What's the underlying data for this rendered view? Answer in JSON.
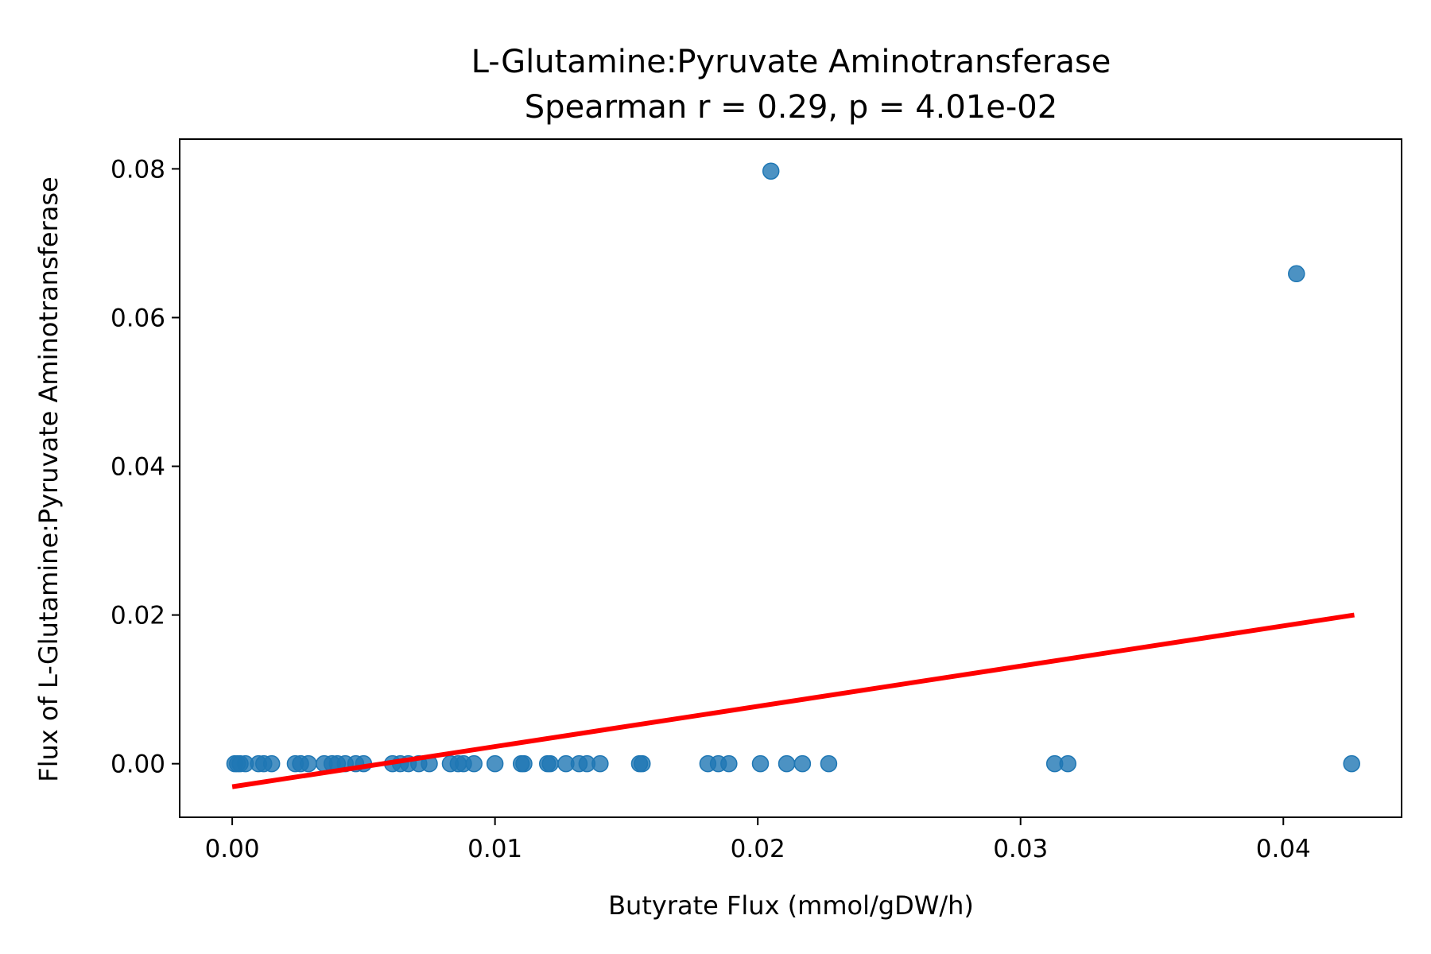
{
  "chart_data": {
    "type": "scatter",
    "title": "L-Glutamine:Pyruvate Aminotransferase",
    "subtitle": "Spearman r = 0.29, p = 4.01e-02",
    "xlabel": "Butyrate Flux (mmol/gDW/h)",
    "ylabel": "Flux of L-Glutamine:Pyruvate Aminotransferase",
    "xlim": [
      -0.002,
      0.0445
    ],
    "ylim": [
      -0.0072,
      0.084
    ],
    "x_ticks": [
      0.0,
      0.01,
      0.02,
      0.03,
      0.04
    ],
    "x_tick_labels": [
      "0.00",
      "0.01",
      "0.02",
      "0.03",
      "0.04"
    ],
    "y_ticks": [
      0.0,
      0.02,
      0.04,
      0.06,
      0.08
    ],
    "y_tick_labels": [
      "0.00",
      "0.02",
      "0.04",
      "0.06",
      "0.08"
    ],
    "grid": false,
    "point_color": "#1f77b4",
    "fit_color": "#ff0000",
    "points": [
      {
        "x": 0.0001,
        "y": 0
      },
      {
        "x": 0.0002,
        "y": 0
      },
      {
        "x": 0.0003,
        "y": 0
      },
      {
        "x": 0.0005,
        "y": 0
      },
      {
        "x": 0.001,
        "y": 0
      },
      {
        "x": 0.0012,
        "y": 0
      },
      {
        "x": 0.0015,
        "y": 0
      },
      {
        "x": 0.0024,
        "y": 0
      },
      {
        "x": 0.0026,
        "y": 0
      },
      {
        "x": 0.0029,
        "y": 0
      },
      {
        "x": 0.0035,
        "y": 0
      },
      {
        "x": 0.0038,
        "y": 0
      },
      {
        "x": 0.004,
        "y": 0
      },
      {
        "x": 0.0043,
        "y": 0
      },
      {
        "x": 0.0047,
        "y": 0
      },
      {
        "x": 0.005,
        "y": 0
      },
      {
        "x": 0.0061,
        "y": 0
      },
      {
        "x": 0.0064,
        "y": 0
      },
      {
        "x": 0.0067,
        "y": 0
      },
      {
        "x": 0.0071,
        "y": 0
      },
      {
        "x": 0.0075,
        "y": 0
      },
      {
        "x": 0.0083,
        "y": 0
      },
      {
        "x": 0.0086,
        "y": 0
      },
      {
        "x": 0.0088,
        "y": 0
      },
      {
        "x": 0.0092,
        "y": 0
      },
      {
        "x": 0.01,
        "y": 0
      },
      {
        "x": 0.011,
        "y": 0
      },
      {
        "x": 0.0111,
        "y": 0
      },
      {
        "x": 0.012,
        "y": 0
      },
      {
        "x": 0.0121,
        "y": 0
      },
      {
        "x": 0.0127,
        "y": 0
      },
      {
        "x": 0.0132,
        "y": 0
      },
      {
        "x": 0.0135,
        "y": 0
      },
      {
        "x": 0.014,
        "y": 0
      },
      {
        "x": 0.0155,
        "y": 0
      },
      {
        "x": 0.0156,
        "y": 0
      },
      {
        "x": 0.0181,
        "y": 0
      },
      {
        "x": 0.0185,
        "y": 0
      },
      {
        "x": 0.0189,
        "y": 0
      },
      {
        "x": 0.0201,
        "y": 0
      },
      {
        "x": 0.0211,
        "y": 0
      },
      {
        "x": 0.0217,
        "y": 0
      },
      {
        "x": 0.0227,
        "y": 0
      },
      {
        "x": 0.0313,
        "y": 0
      },
      {
        "x": 0.0318,
        "y": 0
      },
      {
        "x": 0.0426,
        "y": 0
      },
      {
        "x": 0.0205,
        "y": 0.0797
      },
      {
        "x": 0.0405,
        "y": 0.0659
      }
    ],
    "fit_line": {
      "x": [
        0.0,
        0.0427
      ],
      "y": [
        -0.0031,
        0.02
      ]
    }
  }
}
